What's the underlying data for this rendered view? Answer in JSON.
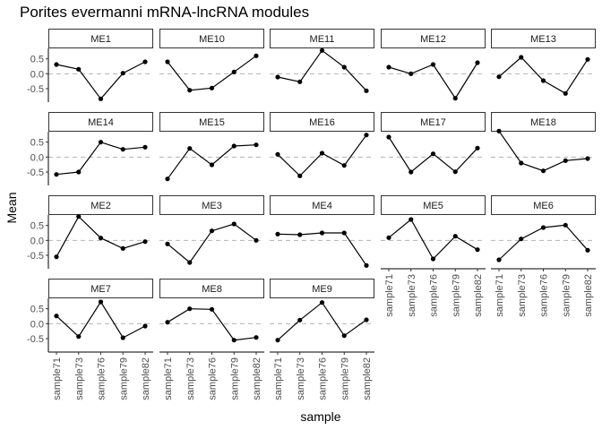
{
  "chart_data": {
    "type": "line",
    "title": "Porites evermanni mRNA-lncRNA modules",
    "xlabel": "sample",
    "ylabel": "Mean",
    "categories": [
      "sample71",
      "sample73",
      "sample76",
      "sample79",
      "sample82"
    ],
    "ylim": [
      -0.95,
      0.85
    ],
    "yticks": [
      {
        "value": 0.5,
        "label": "0.5"
      },
      {
        "value": 0.0,
        "label": "0.0"
      },
      {
        "value": -0.5,
        "label": "-0.5"
      }
    ],
    "reference_line": {
      "value": 0,
      "style": "dashed",
      "color": "#b3b3b3"
    },
    "grid": false,
    "colors": {
      "line": "#000000",
      "point": "#000000",
      "strip_fill": "#ffffff",
      "strip_border": "#333333",
      "reference": "#b3b3b3"
    },
    "facet_columns": 5,
    "panels": [
      {
        "name": "ME1",
        "values": [
          0.31,
          0.15,
          -0.84,
          0.02,
          0.4
        ]
      },
      {
        "name": "ME10",
        "values": [
          0.4,
          -0.55,
          -0.48,
          0.06,
          0.6
        ]
      },
      {
        "name": "ME11",
        "values": [
          -0.11,
          -0.27,
          0.78,
          0.22,
          -0.57
        ]
      },
      {
        "name": "ME12",
        "values": [
          0.22,
          0.0,
          0.31,
          -0.82,
          0.37
        ]
      },
      {
        "name": "ME13",
        "values": [
          -0.1,
          0.55,
          -0.23,
          -0.66,
          0.48
        ]
      },
      {
        "name": "ME14",
        "values": [
          -0.58,
          -0.5,
          0.5,
          0.26,
          0.33
        ]
      },
      {
        "name": "ME15",
        "values": [
          -0.73,
          0.29,
          -0.26,
          0.37,
          0.41
        ]
      },
      {
        "name": "ME16",
        "values": [
          0.09,
          -0.63,
          0.13,
          -0.28,
          0.74
        ]
      },
      {
        "name": "ME17",
        "values": [
          0.67,
          -0.5,
          0.11,
          -0.49,
          0.3
        ]
      },
      {
        "name": "ME18",
        "values": [
          0.87,
          -0.2,
          -0.46,
          -0.12,
          -0.05
        ]
      },
      {
        "name": "ME2",
        "values": [
          -0.55,
          0.8,
          0.08,
          -0.27,
          -0.04
        ]
      },
      {
        "name": "ME3",
        "values": [
          -0.12,
          -0.74,
          0.32,
          0.55,
          0.0
        ]
      },
      {
        "name": "ME4",
        "values": [
          0.21,
          0.19,
          0.25,
          0.25,
          -0.84
        ]
      },
      {
        "name": "ME5",
        "values": [
          0.09,
          0.7,
          -0.62,
          0.14,
          -0.31
        ]
      },
      {
        "name": "ME6",
        "values": [
          -0.65,
          0.05,
          0.43,
          0.51,
          -0.33
        ]
      },
      {
        "name": "ME7",
        "values": [
          0.26,
          -0.43,
          0.73,
          -0.47,
          -0.08
        ]
      },
      {
        "name": "ME8",
        "values": [
          0.05,
          0.5,
          0.48,
          -0.55,
          -0.46
        ]
      },
      {
        "name": "ME9",
        "values": [
          -0.55,
          0.12,
          0.71,
          -0.4,
          0.13
        ]
      }
    ]
  }
}
